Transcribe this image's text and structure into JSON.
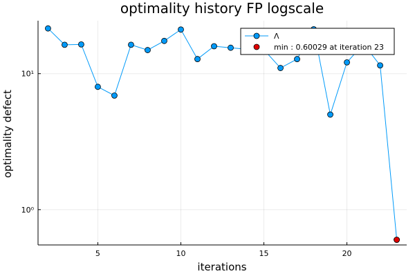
{
  "chart_data": {
    "type": "line",
    "title": "optimality history FP logscale",
    "xlabel": "iterations",
    "ylabel": "optimality defect",
    "yscale": "log10",
    "xlim": [
      1.4,
      23.6
    ],
    "ylim": [
      0.55,
      24.5
    ],
    "xticks": [
      5,
      10,
      15,
      20
    ],
    "xtick_labels": [
      "5",
      "10",
      "15",
      "20"
    ],
    "yticks": [
      1,
      10
    ],
    "ytick_labels": [
      "10⁰",
      "10¹"
    ],
    "grid": true,
    "legend_position": "top-right",
    "series": [
      {
        "name": "Λ",
        "color": "#009af9",
        "marker": "circle",
        "x": [
          2,
          3,
          4,
          5,
          6,
          7,
          8,
          9,
          10,
          11,
          12,
          13,
          14,
          15,
          16,
          17,
          18,
          19,
          20,
          21,
          22,
          23
        ],
        "y": [
          21.5,
          16.3,
          16.4,
          8.0,
          6.9,
          16.3,
          14.9,
          17.4,
          21.1,
          12.8,
          15.9,
          15.5,
          15.1,
          15.0,
          11.0,
          12.8,
          21.2,
          5.0,
          12.1,
          16.5,
          11.5,
          0.60029
        ]
      },
      {
        "name": "min : 0.60029 at iteration 23",
        "color": "#e10000",
        "marker": "circle",
        "x": [
          23
        ],
        "y": [
          0.60029
        ]
      }
    ]
  }
}
